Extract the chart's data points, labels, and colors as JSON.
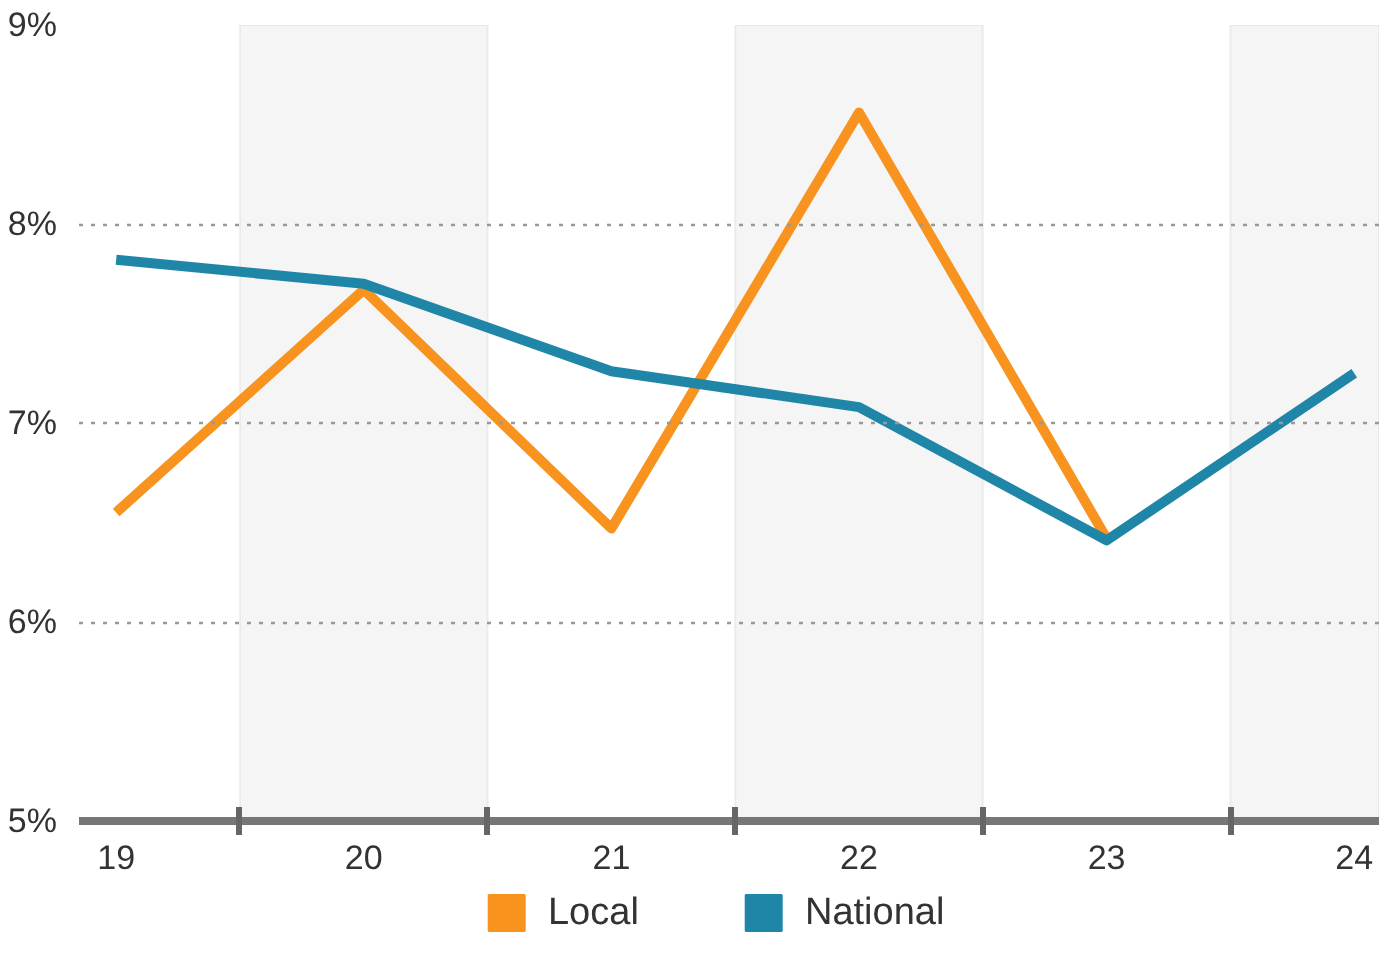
{
  "chart_data": {
    "type": "line",
    "x": [
      19,
      20,
      21,
      22,
      23,
      24
    ],
    "series": [
      {
        "name": "Local",
        "color": "#f7931e",
        "values": [
          6.55,
          7.67,
          6.47,
          8.56,
          6.42,
          null
        ]
      },
      {
        "name": "National",
        "color": "#1f86a8",
        "values": [
          7.82,
          7.7,
          7.26,
          7.08,
          6.41,
          7.25
        ]
      }
    ],
    "xlim": [
      18.85,
      24.1
    ],
    "xticks": [
      19,
      {
        "value": 19.5,
        "label": null
      },
      20,
      {
        "value": 20.5,
        "label": null
      },
      21,
      {
        "value": 21.5,
        "label": null
      },
      22,
      {
        "value": 22.5,
        "label": null
      },
      23,
      {
        "value": 23.5,
        "label": null
      },
      24
    ],
    "ylim": [
      5,
      9
    ],
    "yticks": [
      {
        "value": 5,
        "label": "5%"
      },
      {
        "value": 6,
        "label": "6%"
      },
      {
        "value": 7,
        "label": "7%"
      },
      {
        "value": 8,
        "label": "8%"
      },
      {
        "value": 9,
        "label": "9%"
      }
    ],
    "bands": [
      {
        "axis": "x",
        "from": 19.5,
        "to": 20.5,
        "color": "#f5f5f5"
      },
      {
        "axis": "x",
        "from": 21.5,
        "to": 22.5,
        "color": "#f5f5f5"
      },
      {
        "axis": "x",
        "from": 23.5,
        "to": 24.1,
        "color": "#f5f5f5"
      }
    ],
    "grid": "y",
    "legend": "bottom",
    "line_style": "solid"
  }
}
